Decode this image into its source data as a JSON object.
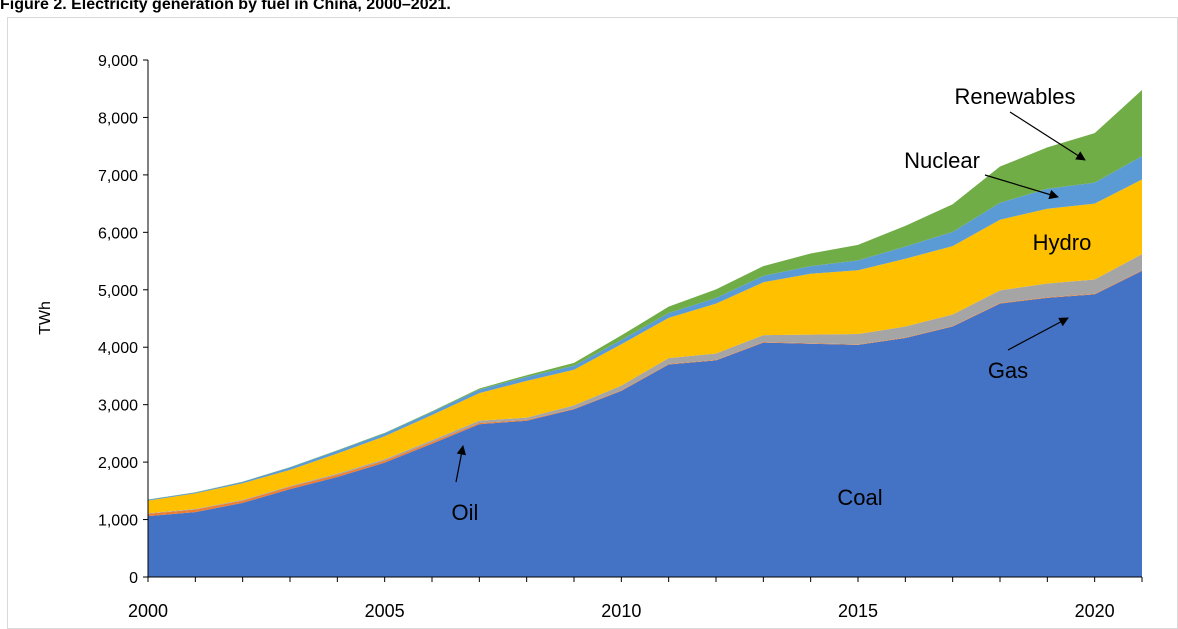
{
  "chart_data": {
    "type": "stacked_area",
    "title": "Figure 2. Electricity generation by fuel in China, 2000–2021.",
    "y_label": "TWh",
    "x": [
      2000,
      2001,
      2002,
      2003,
      2004,
      2005,
      2006,
      2007,
      2008,
      2009,
      2010,
      2011,
      2012,
      2013,
      2014,
      2015,
      2016,
      2017,
      2018,
      2019,
      2020,
      2021
    ],
    "xlim": [
      2000,
      2021
    ],
    "xticks": [
      2000,
      2005,
      2010,
      2015,
      2020
    ],
    "ylim": [
      0,
      9000
    ],
    "yticks": [
      0,
      {
        "value": 1000,
        "label": "1,000"
      },
      {
        "value": 2000,
        "label": "2,000"
      },
      {
        "value": 3000,
        "label": "3,000"
      },
      {
        "value": 4000,
        "label": "4,000"
      },
      {
        "value": 5000,
        "label": "5,000"
      },
      {
        "value": 6000,
        "label": "6,000"
      },
      {
        "value": 7000,
        "label": "7,000"
      },
      {
        "value": 8000,
        "label": "8,000"
      },
      {
        "value": 9000,
        "label": "9,000"
      }
    ],
    "series": [
      {
        "name": "Coal",
        "color": "#4472c4",
        "values": [
          1060,
          1130,
          1290,
          1530,
          1740,
          1990,
          2320,
          2660,
          2720,
          2920,
          3240,
          3700,
          3770,
          4080,
          4060,
          4040,
          4160,
          4360,
          4760,
          4860,
          4920,
          5330
        ]
      },
      {
        "name": "Oil",
        "color": "#ed7d31",
        "values": [
          40,
          45,
          40,
          40,
          40,
          35,
          30,
          20,
          15,
          12,
          12,
          10,
          10,
          10,
          10,
          10,
          10,
          10,
          10,
          10,
          10,
          10
        ]
      },
      {
        "name": "Gas",
        "color": "#a5a5a5",
        "values": [
          10,
          10,
          12,
          15,
          20,
          25,
          30,
          40,
          40,
          55,
          80,
          100,
          110,
          120,
          150,
          180,
          190,
          200,
          220,
          240,
          250,
          280
        ]
      },
      {
        "name": "Hydro",
        "color": "#ffc000",
        "values": [
          220,
          270,
          290,
          280,
          350,
          400,
          440,
          480,
          640,
          620,
          720,
          700,
          870,
          920,
          1060,
          1110,
          1180,
          1190,
          1230,
          1300,
          1320,
          1300
        ]
      },
      {
        "name": "Nuclear",
        "color": "#5b9bd5",
        "values": [
          17,
          17,
          25,
          43,
          50,
          53,
          55,
          62,
          68,
          70,
          74,
          86,
          97,
          112,
          132,
          171,
          213,
          248,
          295,
          348,
          366,
          407
        ]
      },
      {
        "name": "Renewables",
        "color": "#70ad47",
        "values": [
          3,
          3,
          4,
          5,
          6,
          7,
          10,
          20,
          30,
          50,
          80,
          110,
          150,
          170,
          220,
          270,
          360,
          480,
          630,
          720,
          860,
          1150
        ]
      }
    ],
    "annotations": [
      "Renewables",
      "Nuclear",
      "Hydro",
      "Gas",
      "Oil",
      "Coal"
    ]
  }
}
